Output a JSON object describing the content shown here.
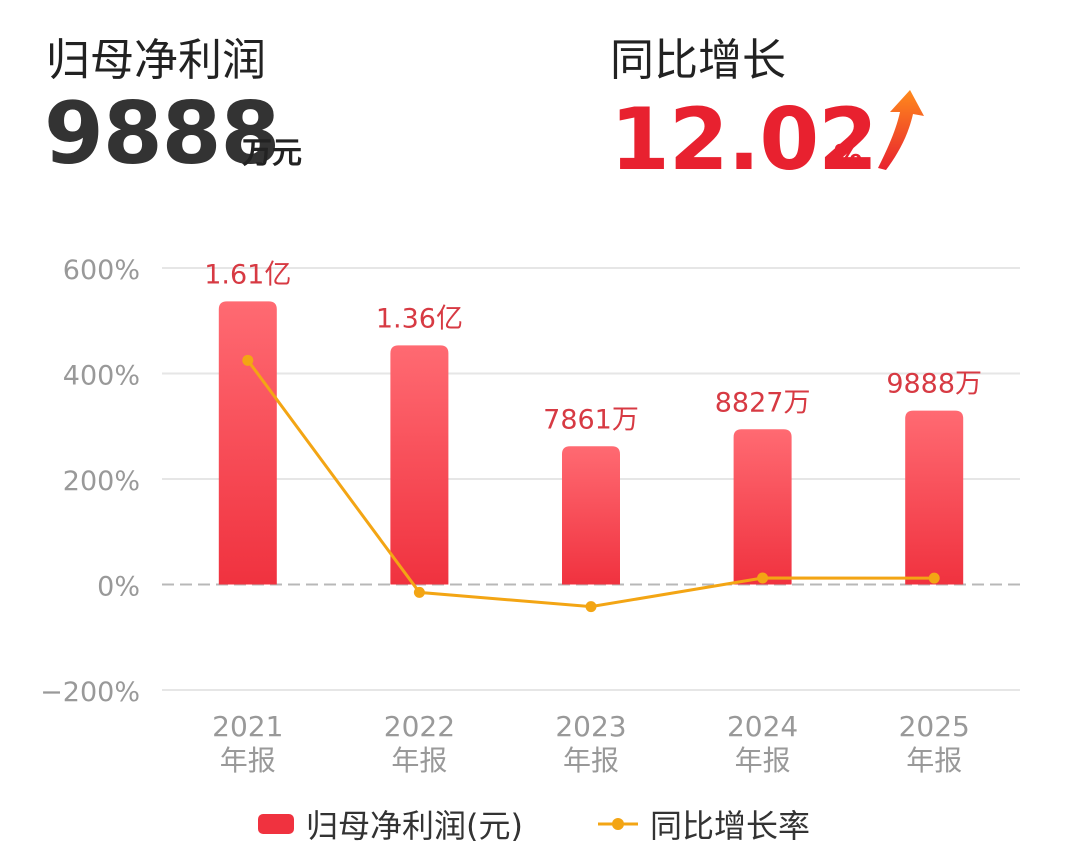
{
  "kpi": {
    "profit_label": "归母净利润",
    "profit_value": "9888",
    "profit_unit": "万元",
    "growth_label": "同比增长",
    "growth_value": "12.02",
    "growth_unit": "%"
  },
  "colors": {
    "bar": "#f0323f",
    "bar_light": "#ff6a72",
    "line": "#f3a514",
    "accent": "#e8212f",
    "axis_text": "#999999",
    "bar_label": "#d73a43"
  },
  "legend": {
    "bar_label": "归母净利润(元)",
    "line_label": "同比增长率"
  },
  "chart_data": {
    "type": "bar",
    "categories": [
      "2021\n年报",
      "2022\n年报",
      "2023\n年报",
      "2024\n年报",
      "2025\n年报"
    ],
    "category_years": [
      "2021",
      "2022",
      "2023",
      "2024",
      "2025"
    ],
    "category_suffix": "年报",
    "series": [
      {
        "name": "归母净利润(元)",
        "type": "bar",
        "values": [
          16100,
          13600,
          7861,
          8827,
          9888
        ],
        "unit": "万元",
        "labels": [
          "1.61亿",
          "1.36亿",
          "7861万",
          "8827万",
          "9888万"
        ]
      },
      {
        "name": "同比增长率",
        "type": "line",
        "values": [
          425,
          -15,
          -42,
          12.29,
          12.02
        ],
        "unit": "%"
      }
    ],
    "yaxis_left": {
      "ticks": [
        600,
        400,
        200,
        0,
        -200
      ],
      "tick_labels": [
        "600%",
        "400%",
        "200%",
        "0%",
        "−200%"
      ],
      "ylim": [
        -200,
        600
      ]
    },
    "bar_scale_max": 18000,
    "grid": true,
    "legend_position": "bottom"
  }
}
